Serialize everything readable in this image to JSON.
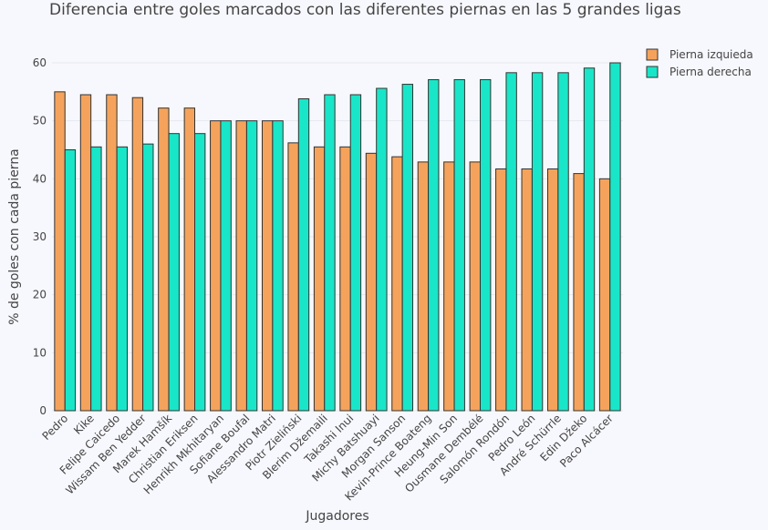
{
  "chart_data": {
    "type": "bar",
    "title": "Diferencia entre goles marcados con las diferentes piernas en las 5 grandes ligas",
    "xlabel": "Jugadores",
    "ylabel": "% de goles con cada pierna",
    "ylim": [
      0,
      60
    ],
    "yticks": [
      "0",
      "10",
      "20",
      "30",
      "40",
      "50",
      "60"
    ],
    "grid": true,
    "legend_position": "top-right",
    "categories": [
      "Pedro",
      "Kike",
      "Felipe Caicedo",
      "Wissam Ben Yedder",
      "Marek Hamšík",
      "Christian Eriksen",
      "Henrikh Mkhitaryan",
      "Sofiane Boufal",
      "Alessandro Matri",
      "Piotr Zieliński",
      "Blerim Džemaili",
      "Takashi Inui",
      "Michy Batshuayi",
      "Morgan Sanson",
      "Kevin-Prince Boateng",
      "Heung-Min Son",
      "Ousmane Dembélé",
      "Salomón Rondón",
      "Pedro León",
      "André Schürrle",
      "Edin Džeko",
      "Paco Alcácer"
    ],
    "series": [
      {
        "name": "Pierna izquieda",
        "color": "#f5a35c",
        "values": [
          55.0,
          54.5,
          54.5,
          54.0,
          52.2,
          52.2,
          50.0,
          50.0,
          50.0,
          46.2,
          45.5,
          45.5,
          44.4,
          43.8,
          42.9,
          42.9,
          42.9,
          41.7,
          41.7,
          41.7,
          40.9,
          40.0
        ]
      },
      {
        "name": "Pierna derecha",
        "color": "#19e6c8",
        "values": [
          45.0,
          45.5,
          45.5,
          46.0,
          47.8,
          47.8,
          50.0,
          50.0,
          50.0,
          53.8,
          54.5,
          54.5,
          55.6,
          56.3,
          57.1,
          57.1,
          57.1,
          58.3,
          58.3,
          58.3,
          59.1,
          60.0
        ]
      }
    ]
  }
}
